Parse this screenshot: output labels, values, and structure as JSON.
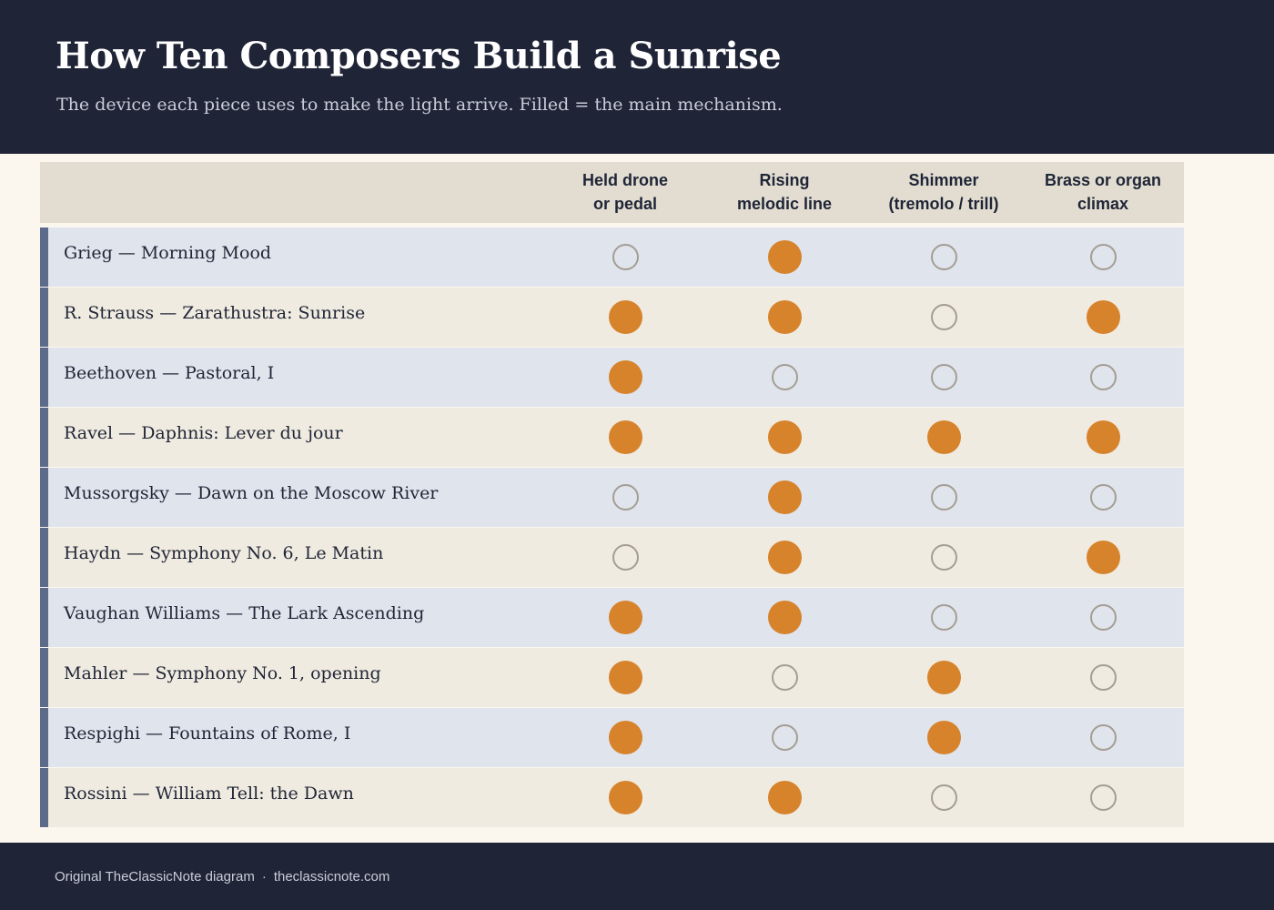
{
  "header": {
    "title": "How Ten Composers Build a Sunrise",
    "subtitle": "The device each piece uses to make the light arrive. Filled = the main mechanism."
  },
  "columns": [
    {
      "line1": "Held drone",
      "line2": "or pedal"
    },
    {
      "line1": "Rising",
      "line2": "melodic line"
    },
    {
      "line1": "Shimmer",
      "line2": "(tremolo / trill)"
    },
    {
      "line1": "Brass or organ",
      "line2": "climax"
    }
  ],
  "rows": [
    {
      "label": "Grieg — Morning Mood",
      "marks": [
        false,
        true,
        false,
        false
      ]
    },
    {
      "label": "R. Strauss — Zarathustra: Sunrise",
      "marks": [
        true,
        true,
        false,
        true
      ]
    },
    {
      "label": "Beethoven — Pastoral, I",
      "marks": [
        true,
        false,
        false,
        false
      ]
    },
    {
      "label": "Ravel — Daphnis: Lever du jour",
      "marks": [
        true,
        true,
        true,
        true
      ]
    },
    {
      "label": "Mussorgsky — Dawn on the Moscow River",
      "marks": [
        false,
        true,
        false,
        false
      ]
    },
    {
      "label": "Haydn — Symphony No. 6, Le Matin",
      "marks": [
        false,
        true,
        false,
        true
      ]
    },
    {
      "label": "Vaughan Williams — The Lark Ascending",
      "marks": [
        true,
        true,
        false,
        false
      ]
    },
    {
      "label": "Mahler — Symphony No. 1, opening",
      "marks": [
        true,
        false,
        true,
        false
      ]
    },
    {
      "label": "Respighi — Fountains of Rome, I",
      "marks": [
        true,
        false,
        true,
        false
      ]
    },
    {
      "label": "Rossini — William Tell: the Dawn",
      "marks": [
        true,
        true,
        false,
        false
      ]
    }
  ],
  "footer": {
    "credit": "Original TheClassicNote diagram",
    "separator": "·",
    "site": "theclassicnote.com"
  },
  "colors": {
    "header_bg": "#1f2537",
    "filled_dot": "#d6832c",
    "empty_dot_ring": "#a39e94",
    "row_bg_odd": "#e0e4ec",
    "row_bg_even": "#f0ebe0",
    "row_accent": "#5c6b8a",
    "column_header_bg": "#e2ddd0"
  }
}
